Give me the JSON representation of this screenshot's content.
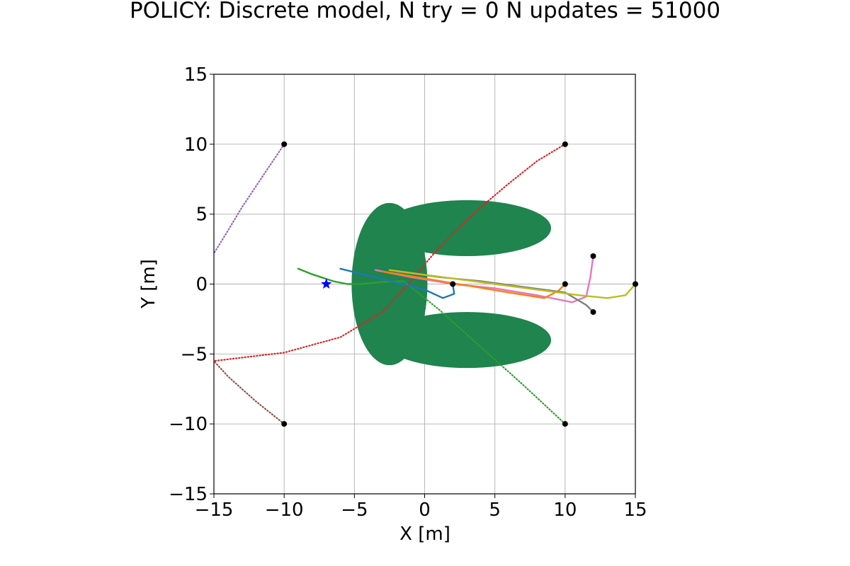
{
  "chart_data": {
    "type": "scatter",
    "title": "POLICY: Discrete model, N try = 0 N updates = 51000",
    "xlabel": "X [m]",
    "ylabel": "Y [m]",
    "xlim": [
      -15,
      15
    ],
    "ylim": [
      -15,
      15
    ],
    "grid": true,
    "xticks": [
      -15,
      -10,
      -5,
      0,
      5,
      10,
      15
    ],
    "yticks": [
      -15,
      -10,
      -5,
      0,
      5,
      10,
      15
    ],
    "xtick_labels": [
      "−15",
      "−10",
      "−5",
      "0",
      "5",
      "10",
      "15"
    ],
    "ytick_labels": [
      "−15",
      "−10",
      "−5",
      "0",
      "5",
      "10",
      "15"
    ],
    "obstacle": {
      "color": "#1f844d",
      "left_body": {
        "center": [
          -2.5,
          0
        ],
        "radii": [
          2.7,
          5.8
        ]
      },
      "top_arm": {
        "center": [
          3,
          4
        ],
        "radii": [
          6,
          2
        ]
      },
      "bottom_arm": {
        "center": [
          3,
          -4
        ],
        "radii": [
          6,
          2
        ]
      }
    },
    "goal": {
      "x": -7,
      "y": 0,
      "color": "#0000ff"
    },
    "start_points": [
      [
        -10,
        10
      ],
      [
        10,
        10
      ],
      [
        12,
        2
      ],
      [
        10,
        0
      ],
      [
        15,
        0
      ],
      [
        2,
        0
      ],
      [
        12,
        -2
      ],
      [
        -10,
        -10
      ],
      [
        10,
        -10
      ]
    ],
    "series": [
      {
        "name": "purple",
        "color": "#9467bd",
        "style": "dotted",
        "points": [
          [
            -10,
            10
          ],
          [
            -11,
            8.5
          ],
          [
            -12,
            7
          ],
          [
            -13,
            5.5
          ],
          [
            -14.2,
            3.5
          ],
          [
            -15,
            2.2
          ]
        ]
      },
      {
        "name": "brown",
        "color": "#8c564b",
        "style": "dotted",
        "points": [
          [
            -10,
            -10
          ],
          [
            -12,
            -8.4
          ],
          [
            -14,
            -6.6
          ],
          [
            -15,
            -5.5
          ]
        ]
      },
      {
        "name": "red",
        "color": "#d62728",
        "style": "dotted",
        "points": [
          [
            10,
            10
          ],
          [
            8,
            8.8
          ],
          [
            6,
            7.2
          ],
          [
            4,
            5.5
          ],
          [
            2,
            3.6
          ],
          [
            0.5,
            2
          ],
          [
            -1,
            0.2
          ],
          [
            -3,
            -2
          ],
          [
            -6,
            -3.8
          ],
          [
            -10,
            -4.9
          ],
          [
            -15,
            -5.5
          ]
        ]
      },
      {
        "name": "green-dotted",
        "color": "#2ca02c",
        "style": "dotted",
        "points": [
          [
            10,
            -10
          ],
          [
            7,
            -7.2
          ],
          [
            4,
            -4.5
          ],
          [
            1,
            -1.8
          ],
          [
            -1.5,
            0.2
          ]
        ]
      },
      {
        "name": "green",
        "color": "#2ca02c",
        "style": "solid",
        "points": [
          [
            -1.5,
            0.2
          ],
          [
            -3,
            0.15
          ],
          [
            -4.5,
            0
          ],
          [
            -5.5,
            0
          ],
          [
            -6.5,
            0.2
          ],
          [
            -8,
            0.7
          ],
          [
            -9,
            1.1
          ]
        ]
      },
      {
        "name": "blue",
        "color": "#1f77b4",
        "style": "solid",
        "points": [
          [
            2,
            0
          ],
          [
            2.1,
            -0.7
          ],
          [
            1.3,
            -1
          ],
          [
            0,
            -0.4
          ],
          [
            -2,
            0.1
          ],
          [
            -4,
            0.6
          ],
          [
            -6,
            1.1
          ]
        ]
      },
      {
        "name": "pink",
        "color": "#e377c2",
        "style": "solid",
        "points": [
          [
            12,
            2
          ],
          [
            11.8,
            0.5
          ],
          [
            11.5,
            -0.9
          ],
          [
            10.5,
            -1.3
          ],
          [
            8,
            -0.8
          ],
          [
            5,
            -0.3
          ],
          [
            2,
            0
          ],
          [
            -1,
            0.5
          ],
          [
            -3.5,
            1
          ]
        ]
      },
      {
        "name": "orange",
        "color": "#ff7f0e",
        "style": "solid",
        "points": [
          [
            10,
            0
          ],
          [
            9.5,
            -0.5
          ],
          [
            8.5,
            -1
          ],
          [
            6,
            -0.6
          ],
          [
            3,
            -0.1
          ],
          [
            0,
            0.4
          ],
          [
            -3,
            0.9
          ]
        ]
      },
      {
        "name": "gray",
        "color": "#7f7f7f",
        "style": "solid",
        "points": [
          [
            12,
            -2
          ],
          [
            11.5,
            -1.5
          ],
          [
            10,
            -0.6
          ],
          [
            7,
            -0.2
          ],
          [
            4,
            0.2
          ],
          [
            1,
            0.5
          ],
          [
            -2,
            0.9
          ]
        ]
      },
      {
        "name": "olive",
        "color": "#bcbd22",
        "style": "solid",
        "points": [
          [
            15,
            0
          ],
          [
            14.3,
            -0.8
          ],
          [
            13,
            -1
          ],
          [
            11,
            -0.8
          ],
          [
            8,
            -0.4
          ],
          [
            5,
            0
          ],
          [
            2,
            0.4
          ],
          [
            -1,
            0.8
          ],
          [
            -2.5,
            1
          ]
        ]
      }
    ]
  }
}
